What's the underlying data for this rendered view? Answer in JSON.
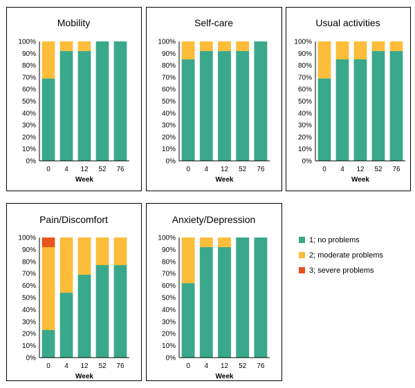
{
  "chart_data": [
    {
      "type": "bar",
      "stacked": true,
      "title": "Mobility",
      "xlabel": "Week",
      "ylabel": "",
      "categories": [
        "0",
        "4",
        "12",
        "52",
        "76"
      ],
      "ylim": [
        0,
        100
      ],
      "yticks": [
        "0%",
        "10%",
        "20%",
        "30%",
        "40%",
        "50%",
        "60%",
        "70%",
        "80%",
        "90%",
        "100%"
      ],
      "series": [
        {
          "name": "1; no problems",
          "values": [
            69,
            92,
            92,
            100,
            100
          ]
        },
        {
          "name": "2; moderate problems",
          "values": [
            31,
            8,
            8,
            0,
            0
          ]
        },
        {
          "name": "3; severe problems",
          "values": [
            0,
            0,
            0,
            0,
            0
          ]
        }
      ]
    },
    {
      "type": "bar",
      "stacked": true,
      "title": "Self-care",
      "xlabel": "Week",
      "ylabel": "",
      "categories": [
        "0",
        "4",
        "12",
        "52",
        "76"
      ],
      "ylim": [
        0,
        100
      ],
      "yticks": [
        "0%",
        "10%",
        "20%",
        "30%",
        "40%",
        "50%",
        "60%",
        "70%",
        "80%",
        "90%",
        "100%"
      ],
      "series": [
        {
          "name": "1; no problems",
          "values": [
            85,
            92,
            92,
            92,
            100
          ]
        },
        {
          "name": "2; moderate problems",
          "values": [
            15,
            8,
            8,
            8,
            0
          ]
        },
        {
          "name": "3; severe problems",
          "values": [
            0,
            0,
            0,
            0,
            0
          ]
        }
      ]
    },
    {
      "type": "bar",
      "stacked": true,
      "title": "Usual activities",
      "xlabel": "Week",
      "ylabel": "",
      "categories": [
        "0",
        "4",
        "12",
        "52",
        "76"
      ],
      "ylim": [
        0,
        100
      ],
      "yticks": [
        "0%",
        "10%",
        "20%",
        "30%",
        "40%",
        "50%",
        "60%",
        "70%",
        "80%",
        "90%",
        "100%"
      ],
      "series": [
        {
          "name": "1; no problems",
          "values": [
            69,
            85,
            85,
            92,
            92
          ]
        },
        {
          "name": "2; moderate problems",
          "values": [
            31,
            15,
            15,
            8,
            8
          ]
        },
        {
          "name": "3; severe problems",
          "values": [
            0,
            0,
            0,
            0,
            0
          ]
        }
      ]
    },
    {
      "type": "bar",
      "stacked": true,
      "title": "Pain/Discomfort",
      "xlabel": "Week",
      "ylabel": "",
      "categories": [
        "0",
        "4",
        "12",
        "52",
        "76"
      ],
      "ylim": [
        0,
        100
      ],
      "yticks": [
        "0%",
        "10%",
        "20%",
        "30%",
        "40%",
        "50%",
        "60%",
        "70%",
        "80%",
        "90%",
        "100%"
      ],
      "series": [
        {
          "name": "1; no problems",
          "values": [
            23,
            54,
            69,
            77,
            77
          ]
        },
        {
          "name": "2; moderate problems",
          "values": [
            69,
            46,
            31,
            23,
            23
          ]
        },
        {
          "name": "3; severe problems",
          "values": [
            8,
            0,
            0,
            0,
            0
          ]
        }
      ]
    },
    {
      "type": "bar",
      "stacked": true,
      "title": "Anxiety/Depression",
      "xlabel": "Week",
      "ylabel": "",
      "categories": [
        "0",
        "4",
        "12",
        "52",
        "76"
      ],
      "ylim": [
        0,
        100
      ],
      "yticks": [
        "0%",
        "10%",
        "20%",
        "30%",
        "40%",
        "50%",
        "60%",
        "70%",
        "80%",
        "90%",
        "100%"
      ],
      "series": [
        {
          "name": "1; no problems",
          "values": [
            62,
            92,
            92,
            100,
            100
          ]
        },
        {
          "name": "2; moderate problems",
          "values": [
            38,
            8,
            8,
            0,
            0
          ]
        },
        {
          "name": "3; severe problems",
          "values": [
            0,
            0,
            0,
            0,
            0
          ]
        }
      ]
    }
  ],
  "legend": {
    "placement": "right",
    "items": [
      {
        "label": "1; no problems",
        "color": "#3aa88a"
      },
      {
        "label": "2; moderate problems",
        "color": "#fbbd3a"
      },
      {
        "label": "3; severe problems",
        "color": "#e9531c"
      }
    ]
  }
}
